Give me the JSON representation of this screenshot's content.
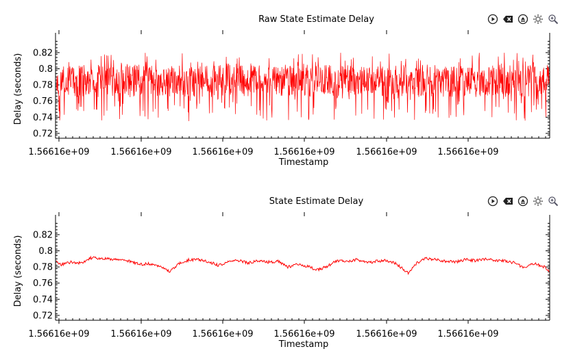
{
  "toolbar_icons": [
    "play-icon",
    "clear-icon",
    "eject-icon",
    "gear-icon",
    "zoom-icon"
  ],
  "colors": {
    "trace": "#ff0000",
    "axis": "#000000",
    "background": "#ffffff"
  },
  "chart_data": [
    {
      "type": "line",
      "title": "Raw State Estimate Delay",
      "xlabel": "Timestamp",
      "ylabel": "Delay (seconds)",
      "x_tick_labels": [
        "1.56616e+09",
        "1.56616e+09",
        "1.56616e+09",
        "1.56616e+09",
        "1.56616e+09",
        "1.56616e+09"
      ],
      "y_ticks": [
        0.72,
        0.74,
        0.76,
        0.78,
        0.8,
        0.82
      ],
      "y_tick_labels": [
        "0.72",
        "0.74",
        "0.76",
        "0.78",
        "0.8",
        "0.82"
      ],
      "ylim": [
        0.714,
        0.836
      ],
      "series": [
        {
          "style": "dense-noise",
          "center": 0.785,
          "spread": 0.04,
          "min": 0.716,
          "max": 0.834,
          "color": "#ff0000"
        }
      ],
      "grid": false,
      "legend": "none"
    },
    {
      "type": "line",
      "title": "State Estimate Delay",
      "xlabel": "Timestamp",
      "ylabel": "Delay (seconds)",
      "x_tick_labels": [
        "1.56616e+09",
        "1.56616e+09",
        "1.56616e+09",
        "1.56616e+09",
        "1.56616e+09",
        "1.56616e+09"
      ],
      "y_ticks": [
        0.72,
        0.74,
        0.76,
        0.78,
        0.8,
        0.82
      ],
      "y_tick_labels": [
        "0.72",
        "0.74",
        "0.76",
        "0.78",
        "0.8",
        "0.82"
      ],
      "ylim": [
        0.714,
        0.836
      ],
      "series": [
        {
          "style": "smoothed",
          "color": "#ff0000",
          "profile": [
            [
              0.0,
              0.788
            ],
            [
              0.01,
              0.783
            ],
            [
              0.03,
              0.786
            ],
            [
              0.05,
              0.785
            ],
            [
              0.07,
              0.791
            ],
            [
              0.09,
              0.791
            ],
            [
              0.11,
              0.79
            ],
            [
              0.13,
              0.789
            ],
            [
              0.15,
              0.787
            ],
            [
              0.17,
              0.783
            ],
            [
              0.19,
              0.784
            ],
            [
              0.21,
              0.78
            ],
            [
              0.23,
              0.775
            ],
            [
              0.25,
              0.784
            ],
            [
              0.27,
              0.789
            ],
            [
              0.29,
              0.789
            ],
            [
              0.31,
              0.786
            ],
            [
              0.33,
              0.782
            ],
            [
              0.35,
              0.786
            ],
            [
              0.37,
              0.788
            ],
            [
              0.39,
              0.785
            ],
            [
              0.41,
              0.788
            ],
            [
              0.43,
              0.786
            ],
            [
              0.45,
              0.787
            ],
            [
              0.47,
              0.78
            ],
            [
              0.49,
              0.783
            ],
            [
              0.51,
              0.781
            ],
            [
              0.53,
              0.776
            ],
            [
              0.55,
              0.781
            ],
            [
              0.57,
              0.788
            ],
            [
              0.59,
              0.787
            ],
            [
              0.61,
              0.789
            ],
            [
              0.63,
              0.785
            ],
            [
              0.65,
              0.787
            ],
            [
              0.67,
              0.788
            ],
            [
              0.69,
              0.784
            ],
            [
              0.715,
              0.772
            ],
            [
              0.73,
              0.784
            ],
            [
              0.75,
              0.791
            ],
            [
              0.77,
              0.789
            ],
            [
              0.79,
              0.787
            ],
            [
              0.81,
              0.786
            ],
            [
              0.83,
              0.789
            ],
            [
              0.85,
              0.788
            ],
            [
              0.87,
              0.79
            ],
            [
              0.89,
              0.788
            ],
            [
              0.91,
              0.788
            ],
            [
              0.93,
              0.785
            ],
            [
              0.95,
              0.779
            ],
            [
              0.97,
              0.784
            ],
            [
              0.99,
              0.78
            ],
            [
              1.0,
              0.775
            ]
          ]
        }
      ],
      "grid": false,
      "legend": "none"
    }
  ]
}
